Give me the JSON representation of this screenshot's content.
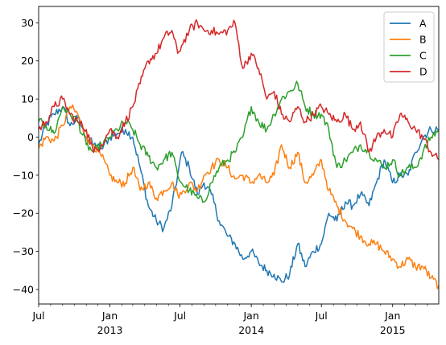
{
  "chart_data": {
    "type": "line",
    "title": "",
    "xlabel": "",
    "ylabel": "",
    "x_range": [
      "2012-07-01",
      "2015-04-30"
    ],
    "ylim": [
      -43.8,
      34.3
    ],
    "grid": false,
    "legend_position": "top-right",
    "y_ticks": [
      30,
      20,
      10,
      0,
      -10,
      -20,
      -30,
      -40
    ],
    "x_major_ticks": [
      {
        "date": "2012-07-01",
        "label": "Jul",
        "year": ""
      },
      {
        "date": "2013-01-01",
        "label": "Jan",
        "year": "2013"
      },
      {
        "date": "2013-07-01",
        "label": "Jul",
        "year": ""
      },
      {
        "date": "2014-01-01",
        "label": "Jan",
        "year": "2014"
      },
      {
        "date": "2014-07-01",
        "label": "Jul",
        "year": ""
      },
      {
        "date": "2015-01-01",
        "label": "Jan",
        "year": "2015"
      }
    ],
    "x_minor_ticks": [
      "2012-08-01",
      "2012-09-01",
      "2012-10-01",
      "2012-11-01",
      "2012-12-01",
      "2013-02-01",
      "2013-03-01",
      "2013-04-01",
      "2013-05-01",
      "2013-06-01",
      "2013-08-01",
      "2013-09-01",
      "2013-10-01",
      "2013-11-01",
      "2013-12-01",
      "2014-02-01",
      "2014-03-01",
      "2014-04-01",
      "2014-05-01",
      "2014-06-01",
      "2014-08-01",
      "2014-09-01",
      "2014-10-01",
      "2014-11-01",
      "2014-12-01",
      "2015-02-01",
      "2015-03-01",
      "2015-04-01"
    ],
    "series": [
      {
        "name": "A",
        "color": "#1f77b4",
        "points": [
          [
            "2012-07-01",
            -2
          ],
          [
            "2012-07-20",
            3
          ],
          [
            "2012-08-10",
            6
          ],
          [
            "2012-09-01",
            8
          ],
          [
            "2012-09-20",
            3
          ],
          [
            "2012-10-10",
            5
          ],
          [
            "2012-11-01",
            0
          ],
          [
            "2012-11-20",
            -2
          ],
          [
            "2012-12-10",
            -3
          ],
          [
            "2013-01-01",
            0
          ],
          [
            "2013-01-20",
            1
          ],
          [
            "2013-02-10",
            2
          ],
          [
            "2013-03-01",
            0
          ],
          [
            "2013-03-20",
            -8
          ],
          [
            "2013-04-10",
            -18
          ],
          [
            "2013-05-01",
            -22
          ],
          [
            "2013-05-20",
            -24
          ],
          [
            "2013-06-10",
            -18
          ],
          [
            "2013-06-25",
            -10
          ],
          [
            "2013-07-05",
            -4
          ],
          [
            "2013-07-25",
            -8
          ],
          [
            "2013-08-15",
            -15
          ],
          [
            "2013-09-01",
            -12
          ],
          [
            "2013-09-20",
            -15
          ],
          [
            "2013-10-10",
            -22
          ],
          [
            "2013-11-01",
            -26
          ],
          [
            "2013-11-20",
            -28
          ],
          [
            "2013-12-10",
            -32
          ],
          [
            "2014-01-01",
            -30
          ],
          [
            "2014-01-20",
            -33
          ],
          [
            "2014-02-10",
            -35
          ],
          [
            "2014-03-01",
            -36
          ],
          [
            "2014-03-20",
            -38
          ],
          [
            "2014-04-10",
            -36
          ],
          [
            "2014-05-01",
            -28
          ],
          [
            "2014-05-20",
            -34
          ],
          [
            "2014-06-10",
            -30
          ],
          [
            "2014-07-01",
            -28
          ],
          [
            "2014-07-20",
            -20
          ],
          [
            "2014-08-10",
            -22
          ],
          [
            "2014-09-01",
            -17
          ],
          [
            "2014-09-20",
            -18
          ],
          [
            "2014-10-10",
            -15
          ],
          [
            "2014-11-01",
            -18
          ],
          [
            "2014-11-20",
            -12
          ],
          [
            "2014-12-10",
            -6
          ],
          [
            "2015-01-01",
            -12
          ],
          [
            "2015-01-20",
            -10
          ],
          [
            "2015-02-10",
            -10
          ],
          [
            "2015-03-01",
            -4
          ],
          [
            "2015-03-20",
            0
          ],
          [
            "2015-04-10",
            2
          ],
          [
            "2015-04-30",
            2
          ]
        ]
      },
      {
        "name": "B",
        "color": "#ff7f0e",
        "points": [
          [
            "2012-07-01",
            -3
          ],
          [
            "2012-07-20",
            0
          ],
          [
            "2012-08-10",
            -1
          ],
          [
            "2012-09-01",
            3
          ],
          [
            "2012-09-20",
            8
          ],
          [
            "2012-10-10",
            6
          ],
          [
            "2012-11-01",
            0
          ],
          [
            "2012-11-20",
            -2
          ],
          [
            "2012-12-10",
            -5
          ],
          [
            "2013-01-01",
            -10
          ],
          [
            "2013-01-20",
            -12
          ],
          [
            "2013-02-10",
            -12
          ],
          [
            "2013-03-01",
            -8
          ],
          [
            "2013-03-20",
            -14
          ],
          [
            "2013-04-10",
            -12
          ],
          [
            "2013-05-01",
            -16
          ],
          [
            "2013-05-20",
            -14
          ],
          [
            "2013-06-10",
            -12
          ],
          [
            "2013-06-25",
            -15
          ],
          [
            "2013-07-05",
            -15
          ],
          [
            "2013-07-25",
            -12
          ],
          [
            "2013-08-15",
            -14
          ],
          [
            "2013-09-01",
            -10
          ],
          [
            "2013-09-20",
            -8
          ],
          [
            "2013-10-10",
            -6
          ],
          [
            "2013-11-01",
            -8
          ],
          [
            "2013-11-20",
            -11
          ],
          [
            "2013-12-10",
            -10
          ],
          [
            "2014-01-01",
            -12
          ],
          [
            "2014-01-20",
            -10
          ],
          [
            "2014-02-10",
            -12
          ],
          [
            "2014-03-01",
            -10
          ],
          [
            "2014-03-20",
            -2
          ],
          [
            "2014-04-10",
            -8
          ],
          [
            "2014-05-01",
            -4
          ],
          [
            "2014-05-20",
            -12
          ],
          [
            "2014-06-10",
            -10
          ],
          [
            "2014-07-01",
            -6
          ],
          [
            "2014-07-20",
            -14
          ],
          [
            "2014-08-10",
            -18
          ],
          [
            "2014-09-01",
            -22
          ],
          [
            "2014-09-20",
            -24
          ],
          [
            "2014-10-10",
            -26
          ],
          [
            "2014-11-01",
            -28
          ],
          [
            "2014-11-20",
            -28
          ],
          [
            "2014-12-10",
            -30
          ],
          [
            "2015-01-01",
            -32
          ],
          [
            "2015-01-20",
            -34
          ],
          [
            "2015-02-10",
            -32
          ],
          [
            "2015-03-01",
            -34
          ],
          [
            "2015-03-20",
            -34
          ],
          [
            "2015-04-10",
            -37
          ],
          [
            "2015-04-30",
            -39
          ]
        ]
      },
      {
        "name": "C",
        "color": "#2ca02c",
        "points": [
          [
            "2012-07-01",
            4
          ],
          [
            "2012-07-20",
            3
          ],
          [
            "2012-08-10",
            1
          ],
          [
            "2012-09-01",
            8
          ],
          [
            "2012-09-20",
            6
          ],
          [
            "2012-10-10",
            4
          ],
          [
            "2012-11-01",
            -2
          ],
          [
            "2012-11-20",
            -4
          ],
          [
            "2012-12-10",
            -2
          ],
          [
            "2013-01-01",
            0
          ],
          [
            "2013-01-20",
            2
          ],
          [
            "2013-02-10",
            4
          ],
          [
            "2013-03-01",
            2
          ],
          [
            "2013-03-20",
            -2
          ],
          [
            "2013-04-10",
            -5
          ],
          [
            "2013-05-01",
            -8
          ],
          [
            "2013-05-20",
            -6
          ],
          [
            "2013-06-10",
            -4
          ],
          [
            "2013-06-25",
            -10
          ],
          [
            "2013-07-05",
            -12
          ],
          [
            "2013-07-25",
            -14
          ],
          [
            "2013-08-15",
            -16
          ],
          [
            "2013-09-01",
            -17
          ],
          [
            "2013-09-20",
            -12
          ],
          [
            "2013-10-10",
            -8
          ],
          [
            "2013-11-01",
            -6
          ],
          [
            "2013-11-20",
            -4
          ],
          [
            "2013-12-10",
            0
          ],
          [
            "2014-01-01",
            8
          ],
          [
            "2014-01-20",
            4
          ],
          [
            "2014-02-10",
            2
          ],
          [
            "2014-03-01",
            6
          ],
          [
            "2014-03-20",
            10
          ],
          [
            "2014-04-10",
            12
          ],
          [
            "2014-05-01",
            14
          ],
          [
            "2014-05-20",
            8
          ],
          [
            "2014-06-10",
            6
          ],
          [
            "2014-07-01",
            6
          ],
          [
            "2014-07-20",
            2
          ],
          [
            "2014-08-10",
            -8
          ],
          [
            "2014-09-01",
            -6
          ],
          [
            "2014-09-20",
            -4
          ],
          [
            "2014-10-10",
            -2
          ],
          [
            "2014-11-01",
            -4
          ],
          [
            "2014-11-20",
            -6
          ],
          [
            "2014-12-10",
            -8
          ],
          [
            "2015-01-01",
            -6
          ],
          [
            "2015-01-20",
            -10
          ],
          [
            "2015-02-10",
            -8
          ],
          [
            "2015-03-01",
            -8
          ],
          [
            "2015-03-20",
            -4
          ],
          [
            "2015-04-10",
            0
          ],
          [
            "2015-04-30",
            2
          ]
        ]
      },
      {
        "name": "D",
        "color": "#d62728",
        "points": [
          [
            "2012-07-01",
            2
          ],
          [
            "2012-07-20",
            4
          ],
          [
            "2012-08-10",
            8
          ],
          [
            "2012-09-01",
            10
          ],
          [
            "2012-09-20",
            6
          ],
          [
            "2012-10-10",
            4
          ],
          [
            "2012-11-01",
            2
          ],
          [
            "2012-11-20",
            -4
          ],
          [
            "2012-12-10",
            -2
          ],
          [
            "2013-01-01",
            2
          ],
          [
            "2013-01-20",
            0
          ],
          [
            "2013-02-10",
            4
          ],
          [
            "2013-03-01",
            8
          ],
          [
            "2013-03-20",
            14
          ],
          [
            "2013-04-10",
            20
          ],
          [
            "2013-05-01",
            22
          ],
          [
            "2013-05-20",
            26
          ],
          [
            "2013-06-10",
            28
          ],
          [
            "2013-06-25",
            22
          ],
          [
            "2013-07-05",
            24
          ],
          [
            "2013-07-25",
            28
          ],
          [
            "2013-08-15",
            30
          ],
          [
            "2013-09-01",
            28
          ],
          [
            "2013-09-20",
            28
          ],
          [
            "2013-10-10",
            27
          ],
          [
            "2013-11-01",
            28
          ],
          [
            "2013-11-20",
            30
          ],
          [
            "2013-12-10",
            18
          ],
          [
            "2014-01-01",
            22
          ],
          [
            "2014-01-20",
            18
          ],
          [
            "2014-02-10",
            10
          ],
          [
            "2014-03-01",
            12
          ],
          [
            "2014-03-20",
            6
          ],
          [
            "2014-04-10",
            4
          ],
          [
            "2014-05-01",
            8
          ],
          [
            "2014-05-20",
            4
          ],
          [
            "2014-06-10",
            6
          ],
          [
            "2014-07-01",
            8
          ],
          [
            "2014-07-20",
            6
          ],
          [
            "2014-08-10",
            4
          ],
          [
            "2014-09-01",
            6
          ],
          [
            "2014-09-20",
            2
          ],
          [
            "2014-10-10",
            4
          ],
          [
            "2014-11-01",
            -4
          ],
          [
            "2014-11-20",
            0
          ],
          [
            "2014-12-10",
            2
          ],
          [
            "2015-01-01",
            0
          ],
          [
            "2015-01-20",
            6
          ],
          [
            "2015-02-10",
            4
          ],
          [
            "2015-03-01",
            2
          ],
          [
            "2015-03-20",
            0
          ],
          [
            "2015-04-10",
            -4
          ],
          [
            "2015-04-30",
            -6
          ]
        ]
      }
    ]
  }
}
